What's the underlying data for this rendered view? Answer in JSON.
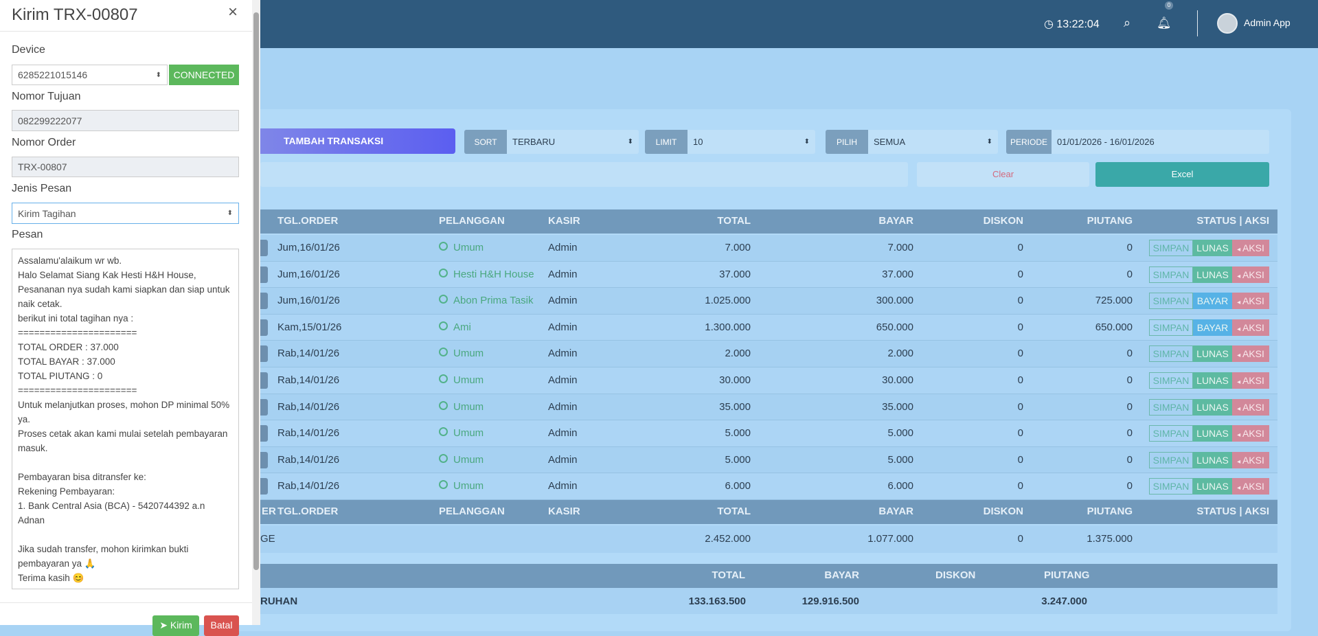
{
  "header": {
    "time": "13:22:04",
    "notif_count": "0",
    "user": "Admin App"
  },
  "toolbar": {
    "add": "TAMBAH TRANSAKSI",
    "sort_label": "SORT",
    "sort": "TERBARU",
    "limit_label": "LIMIT",
    "limit": "10",
    "pilih_label": "PILIH",
    "pilih": "SEMUA",
    "periode_label": "PERIODE",
    "periode": "01/01/2026 - 16/01/2026",
    "clear": "Clear",
    "excel": "Excel"
  },
  "table": {
    "columns": [
      "TGL.ORDER",
      "PELANGGAN",
      "KASIR",
      "TOTAL",
      "BAYAR",
      "DISKON",
      "PIUTANG",
      "STATUS | AKSI"
    ],
    "footer_cut": "ER",
    "rows": [
      [
        "Jum,16/01/26",
        "Umum",
        "Admin",
        "7.000",
        "7.000",
        "0",
        "0",
        "SIMPAN",
        "LUNAS",
        "AKSI"
      ],
      [
        "Jum,16/01/26",
        "Hesti H&H House",
        "Admin",
        "37.000",
        "37.000",
        "0",
        "0",
        "SIMPAN",
        "LUNAS",
        "AKSI"
      ],
      [
        "Jum,16/01/26",
        "Abon Prima Tasik",
        "Admin",
        "1.025.000",
        "300.000",
        "0",
        "725.000",
        "SIMPAN",
        "BAYAR",
        "AKSI"
      ],
      [
        "Kam,15/01/26",
        "Ami",
        "Admin",
        "1.300.000",
        "650.000",
        "0",
        "650.000",
        "SIMPAN",
        "BAYAR",
        "AKSI"
      ],
      [
        "Rab,14/01/26",
        "Umum",
        "Admin",
        "2.000",
        "2.000",
        "0",
        "0",
        "SIMPAN",
        "LUNAS",
        "AKSI"
      ],
      [
        "Rab,14/01/26",
        "Umum",
        "Admin",
        "30.000",
        "30.000",
        "0",
        "0",
        "SIMPAN",
        "LUNAS",
        "AKSI"
      ],
      [
        "Rab,14/01/26",
        "Umum",
        "Admin",
        "35.000",
        "35.000",
        "0",
        "0",
        "SIMPAN",
        "LUNAS",
        "AKSI"
      ],
      [
        "Rab,14/01/26",
        "Umum",
        "Admin",
        "5.000",
        "5.000",
        "0",
        "0",
        "SIMPAN",
        "LUNAS",
        "AKSI"
      ],
      [
        "Rab,14/01/26",
        "Umum",
        "Admin",
        "5.000",
        "5.000",
        "0",
        "0",
        "SIMPAN",
        "LUNAS",
        "AKSI"
      ],
      [
        "Rab,14/01/26",
        "Umum",
        "Admin",
        "6.000",
        "6.000",
        "0",
        "0",
        "SIMPAN",
        "LUNAS",
        "AKSI"
      ]
    ],
    "totals": {
      "label": "GE",
      "total": "2.452.000",
      "bayar": "1.077.000",
      "diskon": "0",
      "piutang": "1.375.000"
    }
  },
  "summary": {
    "columns": [
      "TOTAL",
      "BAYAR",
      "DISKON",
      "PIUTANG"
    ],
    "label": "RUHAN",
    "total": "133.163.500",
    "bayar": "129.916.500",
    "piutang": "3.247.000"
  },
  "modal": {
    "title": "Kirim TRX-00807",
    "close": "×",
    "device_label": "Device",
    "device": "6285221015146",
    "status": "CONNECTED",
    "tujuan_label": "Nomor Tujuan",
    "tujuan": "082299222077",
    "order_label": "Nomor Order",
    "order": "TRX-00807",
    "jenis_label": "Jenis Pesan",
    "jenis": "Kirim Tagihan",
    "pesan_label": "Pesan",
    "message": "Assalamu'alaikum wr wb.\nHalo Selamat Siang Kak Hesti H&H House, Pesananan nya sudah kami siapkan dan siap untuk naik cetak.\nberikut ini total tagihan nya :\n======================\nTOTAL ORDER : 37.000\nTOTAL BAYAR : 37.000\nTOTAL PIUTANG : 0\n======================\nUntuk melanjutkan proses, mohon DP minimal 50% ya.\nProses cetak akan kami mulai setelah pembayaran masuk.\n\nPembayaran bisa ditransfer ke:\nRekening Pembayaran:\n1. Bank Central Asia (BCA) - 5420744392 a.n Adnan\n\nJika sudah transfer, mohon kirimkan bukti pembayaran ya 🙏\nTerima kasih 😊",
    "send": "Kirim",
    "cancel": "Batal"
  }
}
